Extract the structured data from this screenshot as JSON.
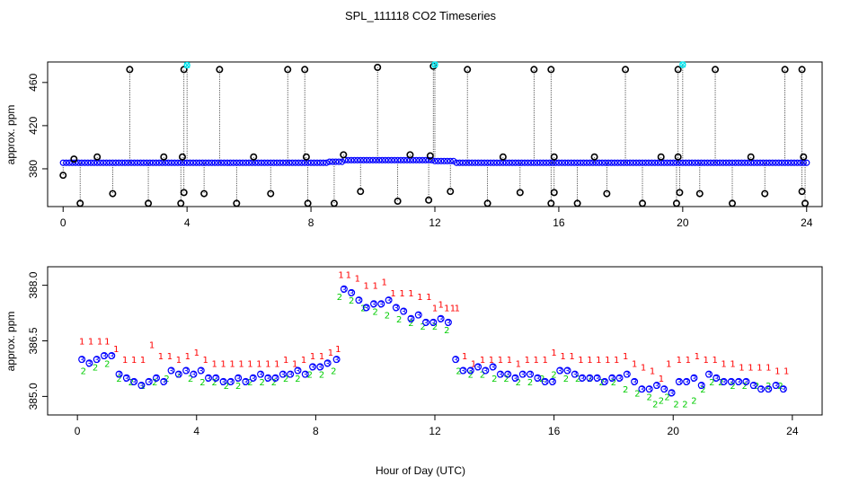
{
  "title": "SPL_111118  CO2 Timeseries",
  "xlabel": "Hour of Day (UTC)",
  "colors": {
    "black": "#000000",
    "blue": "#0000ff",
    "green": "#00cc00",
    "red": "#ff0000",
    "cyan": "#00e5ee",
    "orange": "#ff9900"
  },
  "chart_data": [
    {
      "type": "scatter",
      "name": "top-panel",
      "ylabel": "approx. ppm",
      "xlim": [
        -0.5,
        24.5
      ],
      "ylim": [
        345,
        479
      ],
      "xticks": [
        0,
        4,
        8,
        12,
        16,
        20,
        24
      ],
      "yticks": [
        380,
        420,
        460
      ],
      "series": [
        {
          "name": "baseline",
          "color": "#0000ff",
          "marker": "o",
          "segments": [
            {
              "x0": 0.0,
              "x1": 8.5,
              "y": 385.6
            },
            {
              "x0": 8.5,
              "x1": 9.0,
              "y": 386.5
            },
            {
              "x0": 9.0,
              "x1": 11.9,
              "y": 388.0
            },
            {
              "x0": 11.9,
              "x1": 12.6,
              "y": 387.2
            },
            {
              "x0": 12.6,
              "x1": 24.0,
              "y": 385.6
            }
          ]
        },
        {
          "name": "spikes",
          "color": "#000000",
          "marker": "o",
          "x": [
            2.15,
            3.9,
            5.05,
            7.25,
            7.8,
            10.15,
            11.95,
            13.05,
            15.2,
            15.75,
            18.15,
            19.85,
            21.05,
            23.3,
            23.85
          ],
          "y": [
            472,
            472,
            472,
            472,
            472,
            474,
            475,
            472,
            472,
            472,
            472,
            472,
            472,
            472,
            472
          ]
        },
        {
          "name": "cyan-spikes",
          "color": "#00e5ee",
          "marker": "x",
          "x": [
            4.0,
            12.0,
            20.0
          ],
          "y": [
            476,
            478,
            477
          ]
        },
        {
          "name": "outliers-high",
          "color": "#000000",
          "marker": "o",
          "x": [
            0.35,
            1.1,
            3.25,
            3.85,
            6.15,
            7.85,
            9.05,
            11.2,
            11.85,
            14.2,
            15.85,
            17.15,
            19.3,
            19.85,
            22.2,
            23.9
          ],
          "y": [
            389,
            391,
            391,
            391,
            391,
            391,
            393,
            393,
            392,
            391,
            391,
            391,
            391,
            391,
            391,
            391
          ]
        },
        {
          "name": "outliers-low",
          "color": "#000000",
          "marker": "o",
          "x": [
            0.0,
            0.55,
            1.6,
            2.75,
            3.8,
            3.9,
            4.55,
            5.6,
            6.7,
            7.9,
            8.75,
            9.6,
            10.8,
            11.8,
            12.5,
            13.7,
            14.75,
            15.75,
            15.85,
            16.6,
            17.55,
            18.7,
            19.8,
            19.9,
            20.55,
            21.6,
            22.65,
            23.85,
            23.95
          ],
          "y": [
            374,
            348,
            357,
            348,
            348,
            358,
            357,
            348,
            357,
            348,
            348,
            359,
            350,
            351,
            359,
            348,
            358,
            348,
            358,
            348,
            357,
            348,
            348,
            358,
            357,
            348,
            357,
            359,
            348
          ]
        }
      ]
    },
    {
      "type": "scatter",
      "name": "bottom-panel",
      "ylabel": "approx. ppm",
      "xlim": [
        -1.0,
        25.0
      ],
      "ylim": [
        384.5,
        388.5
      ],
      "xticks": [
        0,
        4,
        8,
        12,
        16,
        20,
        24
      ],
      "yticks": [
        385.0,
        386.5,
        388.0
      ],
      "series": [
        {
          "name": "1",
          "color": "#ff0000",
          "marker": "1",
          "x": [
            0.15,
            0.45,
            0.75,
            1.0,
            1.3,
            1.6,
            1.9,
            2.2,
            2.5,
            2.8,
            3.1,
            3.4,
            3.7,
            4.0,
            4.3,
            4.6,
            4.9,
            5.2,
            5.5,
            5.8,
            6.1,
            6.4,
            6.7,
            7.0,
            7.3,
            7.6,
            7.9,
            8.2,
            8.5,
            8.75,
            8.85,
            9.1,
            9.4,
            9.7,
            10.0,
            10.3,
            10.6,
            10.9,
            11.2,
            11.5,
            11.8,
            12.0,
            12.2,
            12.4,
            12.6,
            12.75,
            13.0,
            13.3,
            13.6,
            13.9,
            14.2,
            14.5,
            14.8,
            15.1,
            15.4,
            15.7,
            16.0,
            16.3,
            16.6,
            16.9,
            17.2,
            17.5,
            17.8,
            18.1,
            18.4,
            18.7,
            19.0,
            19.3,
            19.6,
            19.85,
            20.2,
            20.5,
            20.8,
            21.1,
            21.4,
            21.7,
            22.0,
            22.3,
            22.6,
            22.9,
            23.2,
            23.5,
            23.8
          ],
          "y": [
            386.5,
            386.5,
            386.5,
            386.5,
            386.3,
            386.0,
            386.0,
            386.0,
            386.4,
            386.1,
            386.1,
            386.0,
            386.1,
            386.2,
            386.0,
            385.9,
            385.9,
            385.9,
            385.9,
            385.9,
            385.9,
            385.9,
            385.9,
            386.0,
            385.9,
            386.0,
            386.1,
            386.1,
            386.2,
            386.3,
            388.3,
            388.3,
            388.2,
            388.0,
            388.0,
            388.1,
            387.8,
            387.8,
            387.8,
            387.7,
            387.7,
            387.4,
            387.5,
            387.4,
            387.4,
            387.4,
            386.1,
            385.9,
            386.0,
            386.0,
            386.0,
            386.0,
            385.9,
            386.0,
            386.0,
            386.0,
            386.2,
            386.1,
            386.1,
            386.0,
            386.0,
            386.0,
            386.0,
            386.0,
            386.1,
            385.9,
            385.8,
            385.7,
            385.5,
            385.9,
            386.0,
            386.0,
            386.1,
            386.0,
            386.0,
            385.9,
            385.9,
            385.8,
            385.8,
            385.8,
            385.8,
            385.7,
            385.7
          ]
        },
        {
          "name": "2",
          "color": "#00cc00",
          "marker": "2",
          "x": [
            0.2,
            0.6,
            1.0,
            1.4,
            1.8,
            2.2,
            2.6,
            3.0,
            3.4,
            3.8,
            4.2,
            4.6,
            5.0,
            5.4,
            5.8,
            6.2,
            6.6,
            7.0,
            7.4,
            7.8,
            8.2,
            8.6,
            8.8,
            9.2,
            9.6,
            10.0,
            10.4,
            10.8,
            11.2,
            11.6,
            12.0,
            12.4,
            12.8,
            13.2,
            13.6,
            14.0,
            14.4,
            14.8,
            15.2,
            15.6,
            16.0,
            16.4,
            16.8,
            17.2,
            17.6,
            18.0,
            18.4,
            18.8,
            19.2,
            19.4,
            19.6,
            19.8,
            20.1,
            20.4,
            20.7,
            21.0,
            21.3,
            21.6,
            22.0,
            22.4,
            22.8,
            23.2,
            23.6
          ],
          "y": [
            385.7,
            385.8,
            385.9,
            385.5,
            385.4,
            385.3,
            385.4,
            385.5,
            385.6,
            385.5,
            385.4,
            385.4,
            385.3,
            385.3,
            385.4,
            385.4,
            385.4,
            385.5,
            385.5,
            385.6,
            385.6,
            385.7,
            387.7,
            387.6,
            387.4,
            387.3,
            387.2,
            387.1,
            387.0,
            386.9,
            386.9,
            386.8,
            385.7,
            385.6,
            385.6,
            385.5,
            385.5,
            385.4,
            385.4,
            385.5,
            385.6,
            385.5,
            385.5,
            385.5,
            385.4,
            385.4,
            385.2,
            385.1,
            385.0,
            384.8,
            384.9,
            385.0,
            384.8,
            384.8,
            384.9,
            385.2,
            385.4,
            385.4,
            385.3,
            385.3,
            385.3,
            385.3,
            385.3
          ]
        },
        {
          "name": "3",
          "color": "#0000ff",
          "marker": "3",
          "x": [
            0.15,
            0.4,
            0.65,
            0.9,
            1.15,
            1.4,
            1.65,
            1.9,
            2.15,
            2.4,
            2.65,
            2.9,
            3.15,
            3.4,
            3.65,
            3.9,
            4.15,
            4.4,
            4.65,
            4.9,
            5.15,
            5.4,
            5.65,
            5.9,
            6.15,
            6.4,
            6.65,
            6.9,
            7.15,
            7.4,
            7.65,
            7.9,
            8.15,
            8.4,
            8.7,
            8.95,
            9.2,
            9.45,
            9.7,
            9.95,
            10.2,
            10.45,
            10.7,
            10.95,
            11.2,
            11.45,
            11.7,
            11.95,
            12.2,
            12.45,
            12.7,
            12.95,
            13.2,
            13.45,
            13.7,
            13.95,
            14.2,
            14.45,
            14.7,
            14.95,
            15.2,
            15.45,
            15.7,
            15.95,
            16.2,
            16.45,
            16.7,
            16.95,
            17.2,
            17.45,
            17.7,
            17.95,
            18.2,
            18.45,
            18.7,
            18.95,
            19.2,
            19.45,
            19.7,
            19.95,
            20.2,
            20.45,
            20.7,
            20.95,
            21.2,
            21.45,
            21.7,
            21.95,
            22.2,
            22.45,
            22.7,
            22.95,
            23.2,
            23.45,
            23.7
          ],
          "y": [
            386.0,
            385.9,
            386.0,
            386.1,
            386.1,
            385.6,
            385.5,
            385.4,
            385.3,
            385.4,
            385.5,
            385.4,
            385.7,
            385.6,
            385.7,
            385.6,
            385.7,
            385.5,
            385.5,
            385.4,
            385.4,
            385.5,
            385.4,
            385.5,
            385.6,
            385.5,
            385.5,
            385.6,
            385.6,
            385.7,
            385.6,
            385.8,
            385.8,
            385.9,
            386.0,
            387.9,
            387.8,
            387.6,
            387.4,
            387.5,
            387.5,
            387.6,
            387.4,
            387.3,
            387.1,
            387.2,
            387.0,
            387.0,
            387.1,
            387.0,
            386.0,
            385.7,
            385.7,
            385.8,
            385.7,
            385.8,
            385.6,
            385.6,
            385.5,
            385.6,
            385.6,
            385.5,
            385.4,
            385.4,
            385.7,
            385.7,
            385.6,
            385.5,
            385.5,
            385.5,
            385.4,
            385.5,
            385.5,
            385.6,
            385.4,
            385.2,
            385.2,
            385.3,
            385.2,
            385.1,
            385.4,
            385.4,
            385.5,
            385.3,
            385.6,
            385.5,
            385.4,
            385.4,
            385.4,
            385.4,
            385.3,
            385.2,
            385.2,
            385.3,
            385.2
          ]
        }
      ]
    }
  ]
}
